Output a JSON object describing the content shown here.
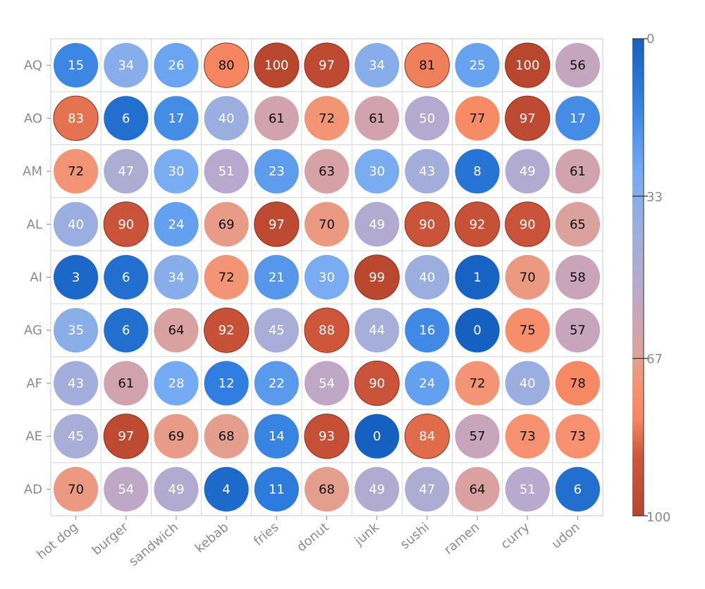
{
  "chart_data": {
    "type": "heatmap",
    "mark": "circle",
    "title": "",
    "xlabel": "",
    "ylabel": "",
    "x_categories": [
      "hot dog",
      "burger",
      "sandwich",
      "kebab",
      "fries",
      "donut",
      "junk",
      "sushi",
      "ramen",
      "curry",
      "udon"
    ],
    "y_categories": [
      "AQ",
      "AO",
      "AM",
      "AL",
      "AI",
      "AG",
      "AF",
      "AE",
      "AD"
    ],
    "values": [
      [
        15,
        34,
        26,
        80,
        100,
        97,
        34,
        81,
        25,
        100,
        56
      ],
      [
        83,
        6,
        17,
        40,
        61,
        72,
        61,
        50,
        77,
        97,
        17
      ],
      [
        72,
        47,
        30,
        51,
        23,
        63,
        30,
        43,
        8,
        49,
        61
      ],
      [
        40,
        90,
        24,
        69,
        97,
        70,
        49,
        90,
        92,
        90,
        65
      ],
      [
        3,
        6,
        34,
        72,
        21,
        30,
        99,
        40,
        1,
        70,
        58
      ],
      [
        35,
        6,
        64,
        92,
        45,
        88,
        44,
        16,
        0,
        75,
        57
      ],
      [
        43,
        61,
        28,
        12,
        22,
        54,
        90,
        24,
        72,
        40,
        78
      ],
      [
        45,
        97,
        69,
        68,
        14,
        93,
        0,
        84,
        57,
        73,
        73
      ],
      [
        70,
        54,
        49,
        4,
        11,
        68,
        49,
        47,
        64,
        51,
        6
      ]
    ],
    "color_range": [
      0,
      100
    ],
    "colorbar_ticks": [
      "0",
      "33",
      "67",
      "100"
    ],
    "colorscale": [
      [
        0,
        "#1560c0"
      ],
      [
        0.12,
        "#2f7ee0"
      ],
      [
        0.28,
        "#74abf4"
      ],
      [
        0.42,
        "#a0b0dc"
      ],
      [
        0.52,
        "#b9a9cc"
      ],
      [
        0.6,
        "#cfa3b2"
      ],
      [
        0.67,
        "#e0a093"
      ],
      [
        0.73,
        "#f7916f"
      ],
      [
        0.8,
        "#f58660"
      ],
      [
        0.87,
        "#d0583c"
      ],
      [
        1,
        "#b8472e"
      ]
    ],
    "grid": true,
    "legend": "colorbar-right"
  }
}
